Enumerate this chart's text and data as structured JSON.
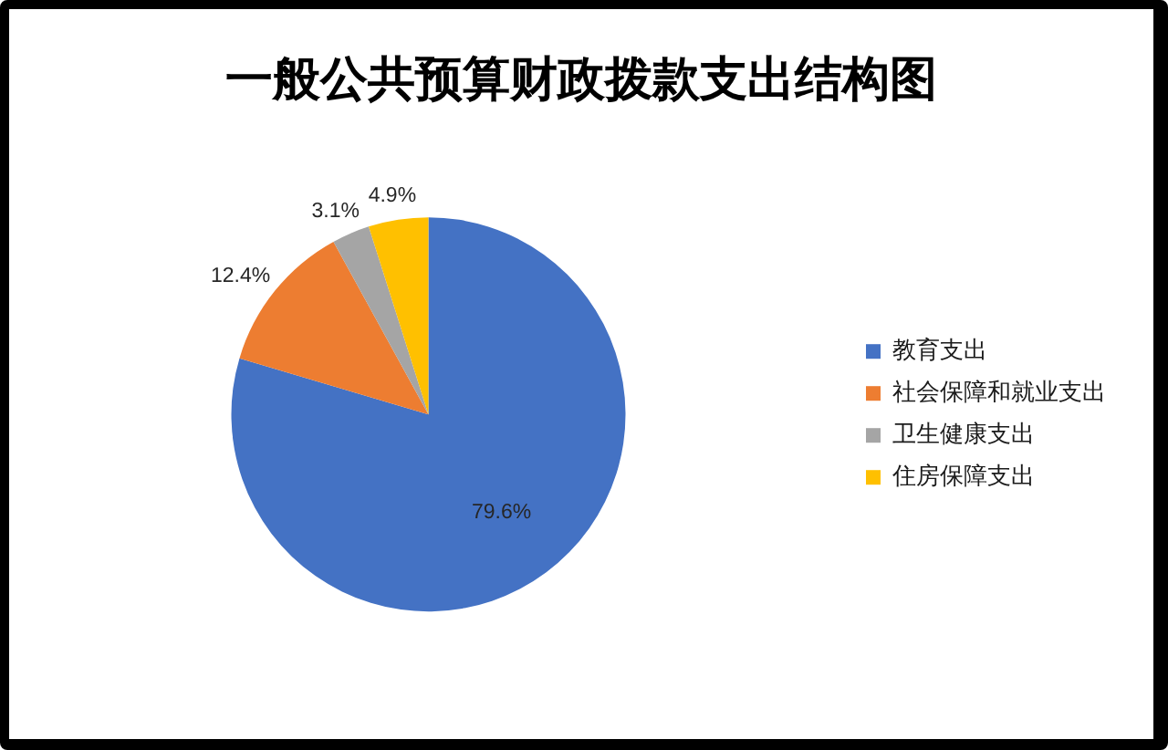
{
  "chart_data": {
    "type": "pie",
    "title": "一般公共预算财政拨款支出结构图",
    "categories": [
      "教育支出",
      "社会保障和就业支出",
      "卫生健康支出",
      "住房保障支出"
    ],
    "values": [
      79.6,
      12.4,
      3.1,
      4.9
    ],
    "colors": [
      "#4472c4",
      "#ed7d31",
      "#a5a5a5",
      "#ffc000"
    ],
    "value_labels": [
      "79.6%",
      "12.4%",
      "3.1%",
      "4.9%"
    ],
    "legend": "right"
  }
}
